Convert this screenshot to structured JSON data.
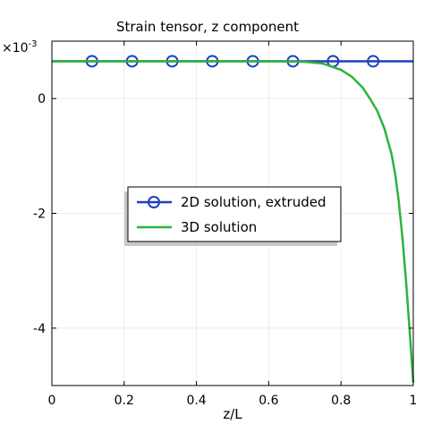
{
  "chart_data": {
    "type": "line",
    "title": "Strain tensor, z component",
    "xlabel": "z/L",
    "ylabel": "",
    "y_multiplier": "×10",
    "y_multiplier_exp": "-3",
    "xlim": [
      0,
      1
    ],
    "ylim": [
      -5,
      1
    ],
    "xticks": [
      0,
      0.2,
      0.4,
      0.6,
      0.8,
      1
    ],
    "xtick_labels": [
      "0",
      "0.2",
      "0.4",
      "0.6",
      "0.8",
      "1"
    ],
    "yticks": [
      0,
      -2,
      -4
    ],
    "ytick_labels": [
      "0",
      "-2",
      "-4"
    ],
    "grid": true,
    "legend_position": "center-left",
    "series": [
      {
        "name": "2D solution, extruded",
        "color": "#1f3fbf",
        "marker": "circle",
        "x": [
          0,
          1
        ],
        "y": [
          0.65,
          0.65
        ],
        "marker_x": [
          0.111,
          0.222,
          0.333,
          0.444,
          0.556,
          0.667,
          0.778,
          0.889
        ]
      },
      {
        "name": "3D solution",
        "color": "#2db33d",
        "marker": "none",
        "x": [
          0,
          0.6,
          0.65,
          0.7,
          0.75,
          0.8,
          0.83,
          0.86,
          0.88,
          0.9,
          0.92,
          0.94,
          0.95,
          0.96,
          0.97,
          0.98,
          0.99,
          1.0
        ],
        "y": [
          0.65,
          0.65,
          0.648,
          0.64,
          0.61,
          0.5,
          0.38,
          0.19,
          0.0,
          -0.21,
          -0.52,
          -0.97,
          -1.32,
          -1.8,
          -2.42,
          -3.18,
          -4.05,
          -4.95
        ]
      }
    ]
  }
}
